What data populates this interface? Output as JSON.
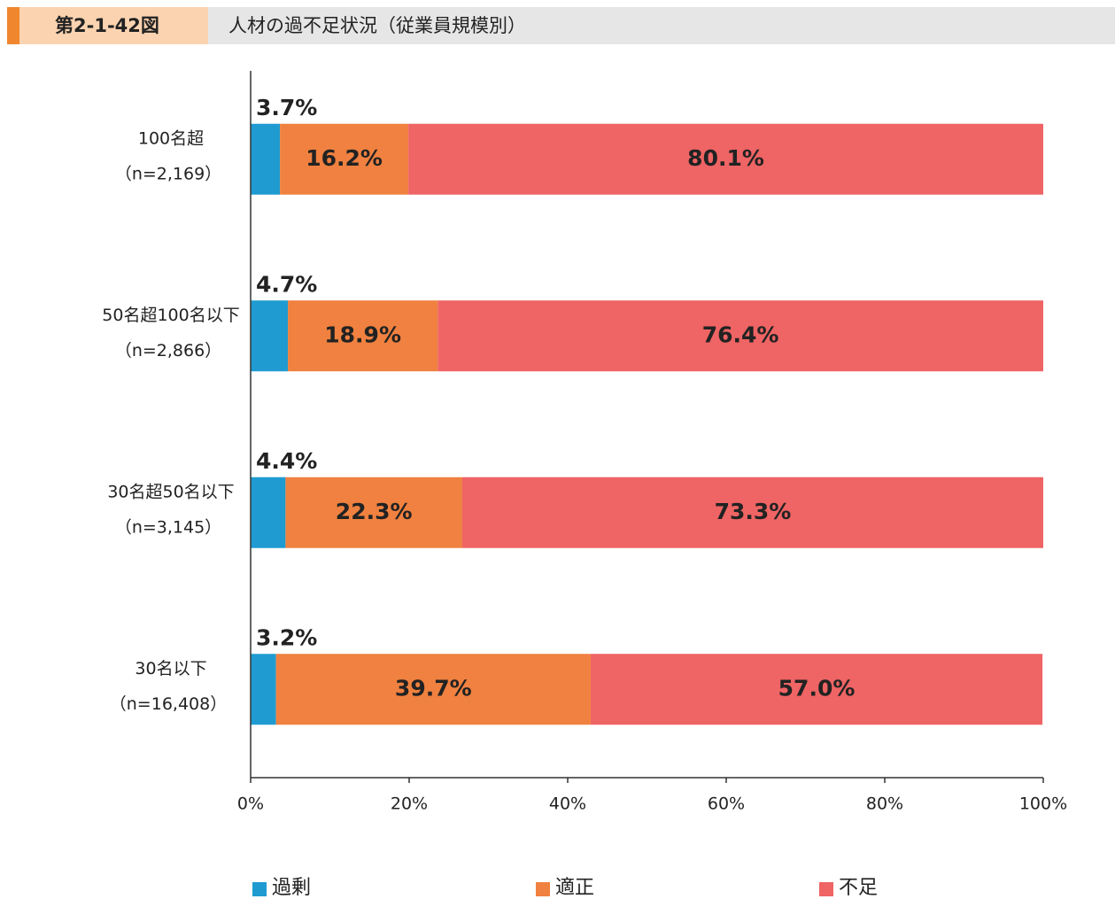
{
  "header": {
    "figure_number": "第2-1-42図",
    "title": "人材の過不足状況（従業員規模別）"
  },
  "chart_data": {
    "type": "stacked_barh",
    "categories": [
      "100名超",
      "50名超100名以下",
      "30名超50名以下",
      "30名以下"
    ],
    "sample_sizes": [
      "（n=2,169）",
      "（n=2,866）",
      "（n=3,145）",
      "（n=16,408）"
    ],
    "series": [
      {
        "name": "過剰",
        "color": "#1f9bd1",
        "values": [
          3.7,
          4.7,
          4.4,
          3.2
        ],
        "value_labels": [
          "3.7%",
          "4.7%",
          "4.4%",
          "3.2%"
        ]
      },
      {
        "name": "適正",
        "color": "#f08140",
        "values": [
          16.2,
          18.9,
          22.3,
          39.7
        ],
        "value_labels": [
          "16.2%",
          "18.9%",
          "22.3%",
          "39.7%"
        ]
      },
      {
        "name": "不足",
        "color": "#ef6464",
        "values": [
          80.1,
          76.4,
          73.3,
          57.0
        ],
        "value_labels": [
          "80.1%",
          "76.4%",
          "73.3%",
          "57.0%"
        ]
      }
    ],
    "xlim": [
      0,
      100
    ],
    "xticks": [
      {
        "value": 0,
        "label": "0%"
      },
      {
        "value": 20,
        "label": "20%"
      },
      {
        "value": 40,
        "label": "40%"
      },
      {
        "value": 60,
        "label": "60%"
      },
      {
        "value": 80,
        "label": "80%"
      },
      {
        "value": 100,
        "label": "100%"
      }
    ],
    "grid": false
  }
}
